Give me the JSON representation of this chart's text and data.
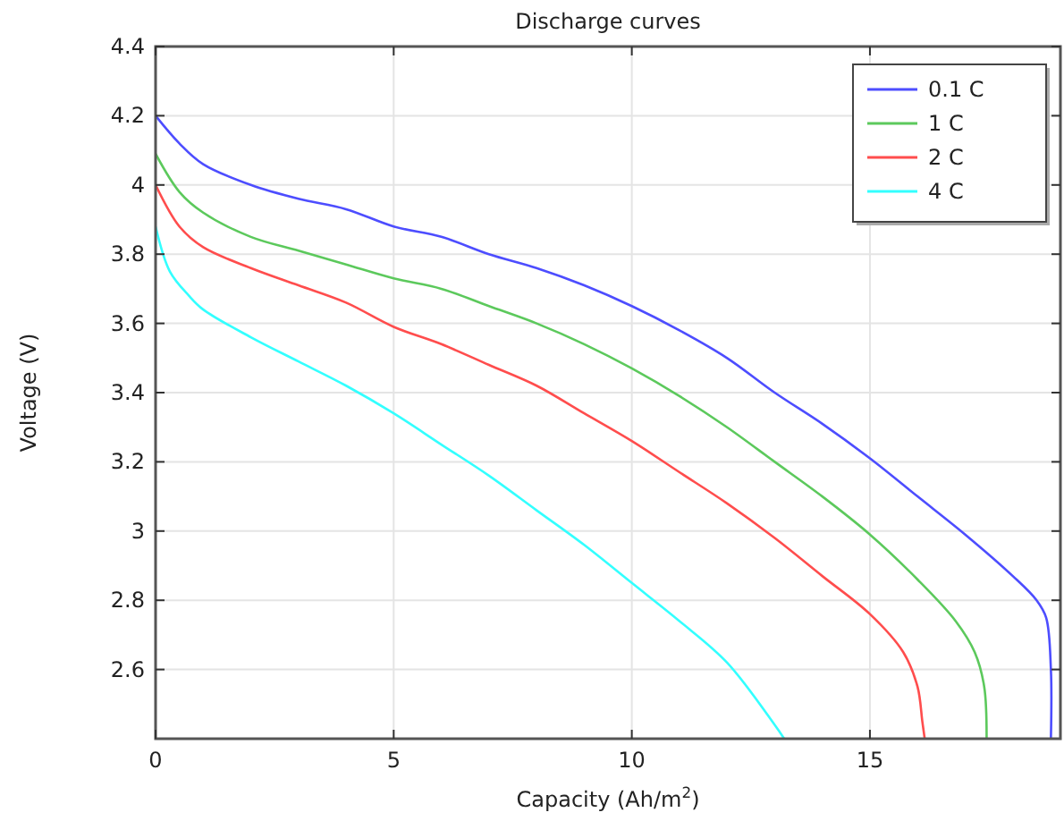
{
  "chart_data": {
    "type": "line",
    "title": "Discharge curves",
    "xlabel": "Capacity (Ah/m$^{2}$)",
    "ylabel": "Voltage (V)",
    "xlim": [
      0,
      19
    ],
    "xticks": [
      0,
      5,
      10,
      15
    ],
    "ylim": [
      2.4,
      4.4
    ],
    "yticks": [
      2.6,
      2.8,
      3,
      3.2,
      3.4,
      3.6,
      3.8,
      4,
      4.2,
      4.4
    ],
    "grid": true,
    "legend": "top right",
    "line_style": "solid",
    "series": [
      {
        "name": "0.1 C",
        "color": "#4d4dff",
        "x": [
          0,
          0.5,
          1,
          2,
          3,
          4,
          5,
          6,
          7,
          8,
          9,
          10,
          11,
          12,
          13,
          14,
          15,
          16,
          17,
          18,
          18.5,
          18.7,
          18.8,
          18.8
        ],
        "values": [
          4.2,
          4.12,
          4.06,
          4,
          3.96,
          3.93,
          3.88,
          3.85,
          3.8,
          3.76,
          3.71,
          3.65,
          3.58,
          3.5,
          3.4,
          3.31,
          3.21,
          3.1,
          2.99,
          2.87,
          2.8,
          2.75,
          2.6,
          2.4
        ]
      },
      {
        "name": "1 C",
        "color": "#5cc95c",
        "x": [
          0,
          0.5,
          1,
          2,
          3,
          4,
          5,
          6,
          7,
          8,
          9,
          10,
          11,
          12,
          13,
          14,
          15,
          16,
          16.8,
          17.2,
          17.4,
          17.45
        ],
        "values": [
          4.09,
          3.98,
          3.92,
          3.85,
          3.81,
          3.77,
          3.73,
          3.7,
          3.65,
          3.6,
          3.54,
          3.47,
          3.39,
          3.3,
          3.2,
          3.1,
          2.99,
          2.86,
          2.74,
          2.65,
          2.55,
          2.4
        ]
      },
      {
        "name": "2 C",
        "color": "#ff4d4d",
        "x": [
          0,
          0.5,
          1,
          2,
          3,
          4,
          5,
          6,
          7,
          8,
          9,
          10,
          11,
          12,
          13,
          14,
          15,
          15.7,
          16,
          16.1,
          16.15
        ],
        "values": [
          4,
          3.88,
          3.82,
          3.76,
          3.71,
          3.66,
          3.59,
          3.54,
          3.48,
          3.42,
          3.34,
          3.26,
          3.17,
          3.08,
          2.98,
          2.87,
          2.76,
          2.65,
          2.55,
          2.45,
          2.4
        ]
      },
      {
        "name": "4 C",
        "color": "#33ffff",
        "x": [
          0,
          0.3,
          0.7,
          1,
          2,
          3,
          4,
          5,
          6,
          7,
          8,
          9,
          10,
          11,
          12,
          13,
          13.2
        ],
        "values": [
          3.88,
          3.75,
          3.68,
          3.64,
          3.56,
          3.49,
          3.42,
          3.34,
          3.25,
          3.16,
          3.06,
          2.96,
          2.85,
          2.74,
          2.62,
          2.44,
          2.4
        ]
      }
    ]
  }
}
